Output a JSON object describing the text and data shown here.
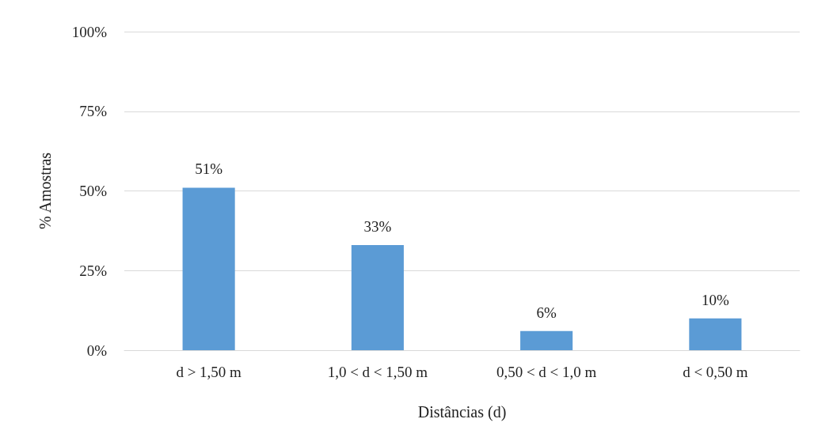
{
  "chart_data": {
    "type": "bar",
    "xlabel": "Distâncias (d)",
    "ylabel": "% Amostras",
    "categories": [
      "d > 1,50 m",
      "1,0 < d < 1,50 m",
      "0,50 < d < 1,0 m",
      "d < 0,50 m"
    ],
    "values": [
      51,
      33,
      6,
      10
    ],
    "color": "#5b9bd5",
    "value_labels": [
      "51%",
      "33%",
      "6%",
      "10%"
    ],
    "ylim": [
      0,
      100
    ],
    "yticks": [
      {
        "value": 0,
        "label": "0%"
      },
      {
        "value": 25,
        "label": "25%"
      },
      {
        "value": 50,
        "label": "50%"
      },
      {
        "value": 75,
        "label": "75%"
      },
      {
        "value": 100,
        "label": "100%"
      }
    ],
    "grid": "y"
  }
}
